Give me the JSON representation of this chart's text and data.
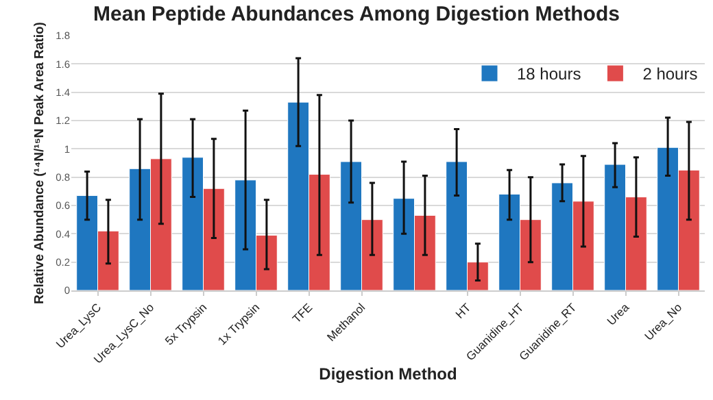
{
  "chart_data": {
    "type": "bar",
    "title": "Mean Peptide Abundances Among Digestion Methods",
    "xlabel": "Digestion Method",
    "ylabel": "Relative Abundance (¹⁴N/¹⁵N Peak Area Ratio)",
    "categories": [
      "Urea_LysC",
      "Urea_LysC_No",
      "5x Trypsin",
      "1x Trypsin",
      "TFE",
      "Methanol",
      null,
      "HT",
      "Guanidine_HT",
      "Guanidine_RT",
      "Urea",
      "Urea_No"
    ],
    "series": [
      {
        "name": "18 hours",
        "color": "#1f77c0",
        "values": [
          0.67,
          0.86,
          0.94,
          0.78,
          1.33,
          0.91,
          0.65,
          0.91,
          0.68,
          0.76,
          0.89,
          1.01
        ],
        "errors": [
          [
            0.5,
            0.84
          ],
          [
            0.5,
            1.21
          ],
          [
            0.66,
            1.21
          ],
          [
            0.29,
            1.27
          ],
          [
            1.02,
            1.64
          ],
          [
            0.62,
            1.2
          ],
          [
            0.4,
            0.91
          ],
          [
            0.67,
            1.14
          ],
          [
            0.5,
            0.85
          ],
          [
            0.63,
            0.89
          ],
          [
            0.73,
            1.04
          ],
          [
            0.81,
            1.22
          ]
        ]
      },
      {
        "name": "2 hours",
        "color": "#e04b4b",
        "values": [
          0.42,
          0.93,
          0.72,
          0.39,
          0.82,
          0.5,
          0.53,
          0.2,
          0.5,
          0.63,
          0.66,
          0.85
        ],
        "errors": [
          [
            0.19,
            0.64
          ],
          [
            0.47,
            1.39
          ],
          [
            0.37,
            1.07
          ],
          [
            0.15,
            0.64
          ],
          [
            0.25,
            1.38
          ],
          [
            0.25,
            0.76
          ],
          [
            0.25,
            0.81
          ],
          [
            0.07,
            0.33
          ],
          [
            0.2,
            0.8
          ],
          [
            0.31,
            0.95
          ],
          [
            0.38,
            0.94
          ],
          [
            0.5,
            1.19
          ]
        ]
      }
    ],
    "ylim": [
      0,
      1.8
    ],
    "yticks": [
      0,
      0.2,
      0.4,
      0.6,
      0.8,
      1,
      1.2,
      1.4,
      1.6,
      1.8
    ],
    "grid": "y",
    "legend": "top right"
  }
}
